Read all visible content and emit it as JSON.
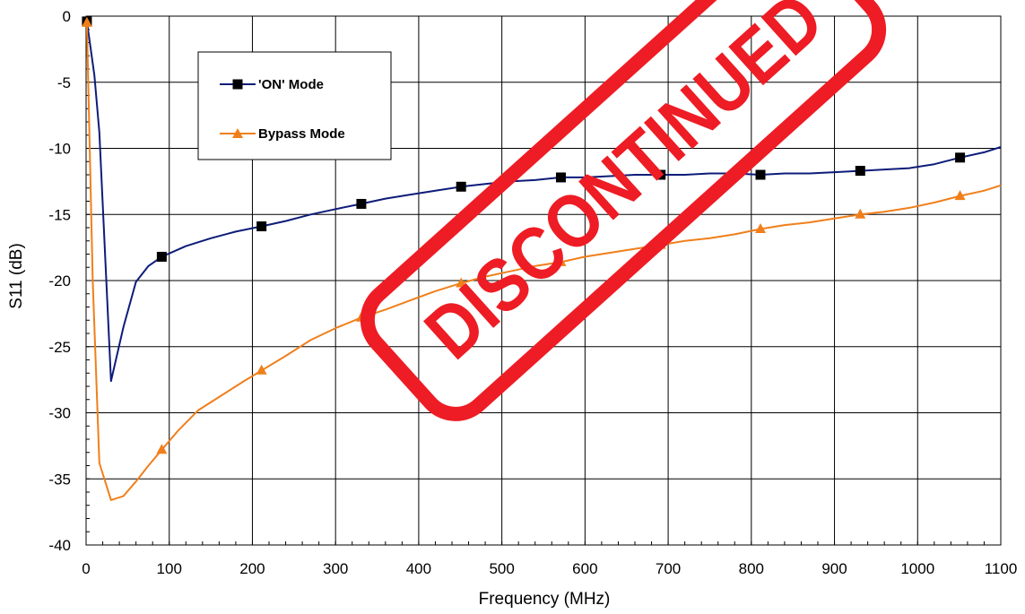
{
  "chart_data": {
    "type": "line",
    "xlabel": "Frequency (MHz)",
    "ylabel": "S11 (dB)",
    "xlim": [
      0,
      1100
    ],
    "ylim": [
      -40,
      0
    ],
    "x_ticks": [
      0,
      100,
      200,
      300,
      400,
      500,
      600,
      700,
      800,
      900,
      1000,
      1100
    ],
    "y_ticks": [
      0,
      -5,
      -10,
      -15,
      -20,
      -25,
      -30,
      -35,
      -40
    ],
    "grid": true,
    "legend_position": "top-left",
    "series": [
      {
        "name": "'ON' Mode",
        "color": "#0d1c79",
        "marker": "square",
        "marker_x": [
          1,
          91,
          211,
          331,
          451,
          571,
          691,
          811,
          931,
          1051
        ],
        "x": [
          1,
          10,
          16,
          30,
          45,
          60,
          75,
          91,
          120,
          150,
          180,
          211,
          240,
          270,
          300,
          331,
          360,
          390,
          420,
          451,
          480,
          510,
          540,
          571,
          600,
          630,
          660,
          691,
          720,
          750,
          780,
          811,
          840,
          870,
          900,
          931,
          960,
          990,
          1020,
          1051,
          1080,
          1100
        ],
        "y": [
          -0.4,
          -4.5,
          -8.8,
          -27.6,
          -23.5,
          -20.1,
          -18.9,
          -18.2,
          -17.4,
          -16.8,
          -16.3,
          -15.9,
          -15.5,
          -15.0,
          -14.6,
          -14.2,
          -13.8,
          -13.5,
          -13.2,
          -12.9,
          -12.7,
          -12.5,
          -12.4,
          -12.2,
          -12.2,
          -12.1,
          -12.0,
          -12.0,
          -12.0,
          -11.9,
          -11.9,
          -12.0,
          -11.9,
          -11.9,
          -11.8,
          -11.7,
          -11.6,
          -11.5,
          -11.2,
          -10.7,
          -10.3,
          -9.9
        ]
      },
      {
        "name": "Bypass Mode",
        "color": "#f07f1b",
        "marker": "triangle",
        "marker_x": [
          1,
          91,
          211,
          331,
          451,
          571,
          691,
          811,
          931,
          1051
        ],
        "x": [
          1,
          8,
          16,
          30,
          45,
          60,
          75,
          91,
          110,
          135,
          165,
          190,
          211,
          240,
          270,
          300,
          331,
          360,
          390,
          420,
          451,
          480,
          510,
          540,
          571,
          600,
          630,
          660,
          691,
          720,
          750,
          780,
          811,
          840,
          870,
          900,
          931,
          960,
          990,
          1020,
          1051,
          1080,
          1100
        ],
        "y": [
          -0.5,
          -20.0,
          -33.8,
          -36.6,
          -36.3,
          -35.2,
          -34.0,
          -32.8,
          -31.4,
          -29.8,
          -28.6,
          -27.6,
          -26.8,
          -25.7,
          -24.5,
          -23.6,
          -22.8,
          -22.2,
          -21.5,
          -20.8,
          -20.2,
          -19.7,
          -19.3,
          -18.9,
          -18.6,
          -18.2,
          -17.9,
          -17.6,
          -17.3,
          -17.0,
          -16.8,
          -16.5,
          -16.1,
          -15.8,
          -15.6,
          -15.3,
          -15.0,
          -14.8,
          -14.5,
          -14.1,
          -13.6,
          -13.2,
          -12.8
        ]
      }
    ]
  },
  "stamp": {
    "text": "DISCONTINUED",
    "color": "#ee1c24"
  }
}
